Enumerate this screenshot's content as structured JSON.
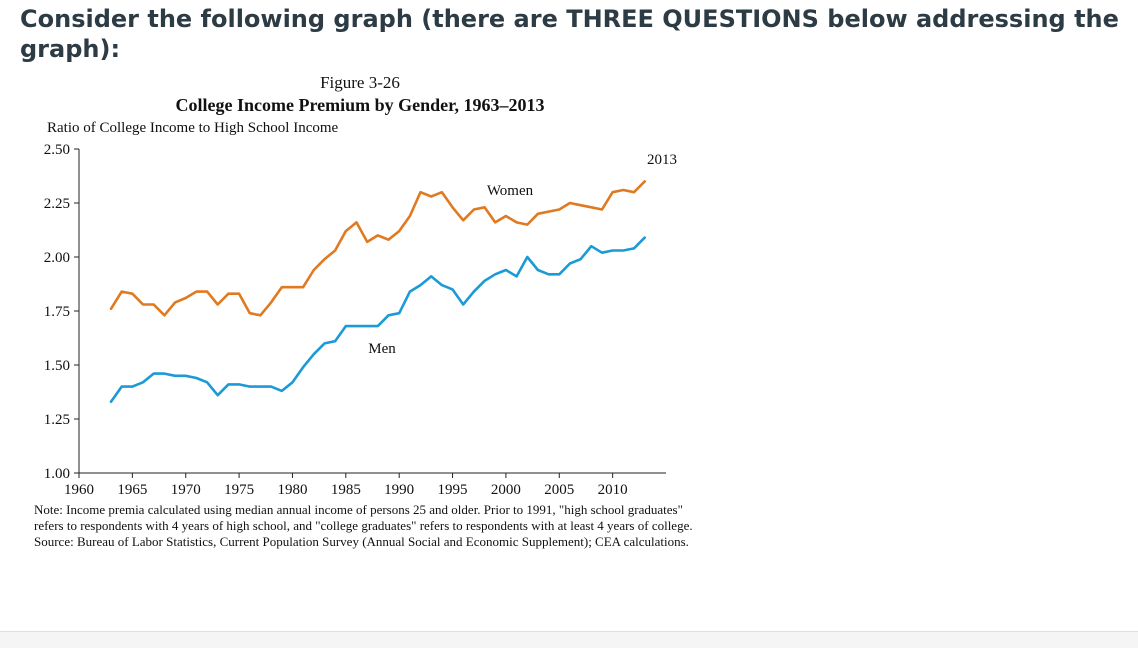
{
  "question": "Consider the following graph (there are THREE QUESTIONS below addressing the graph):",
  "figure": {
    "number": "Figure 3-26",
    "title": "College Income Premium by Gender, 1963–2013",
    "y_axis_title": "Ratio of College Income to High School Income",
    "end_label": "2013",
    "note": "Note: Income premia calculated using median annual income of persons 25 and older.  Prior to 1991, \"high school graduates\" refers to respondents with 4 years of high school, and \"college graduates\" refers to respondents with at least 4 years of college.",
    "source": "Source: Bureau of Labor Statistics, Current Population Survey (Annual Social and Economic Supplement); CEA calculations."
  },
  "colors": {
    "women": "#e07a20",
    "men": "#1b9ad6",
    "axis": "#222222"
  },
  "chart_data": {
    "type": "line",
    "title": "College Income Premium by Gender, 1963–2013",
    "ylabel": "Ratio of College Income to High School Income",
    "xlabel": "",
    "xlim": [
      1960,
      2015
    ],
    "ylim": [
      1.0,
      2.5
    ],
    "x_ticks": [
      "1960",
      "1965",
      "1970",
      "1975",
      "1980",
      "1985",
      "1990",
      "1995",
      "2000",
      "2005",
      "2010"
    ],
    "y_ticks": [
      "1.00",
      "1.25",
      "1.50",
      "1.75",
      "2.00",
      "2.25",
      "2.50"
    ],
    "x": [
      1963,
      1964,
      1965,
      1966,
      1967,
      1968,
      1969,
      1970,
      1971,
      1972,
      1973,
      1974,
      1975,
      1976,
      1977,
      1978,
      1979,
      1980,
      1981,
      1982,
      1983,
      1984,
      1985,
      1986,
      1987,
      1988,
      1989,
      1990,
      1991,
      1992,
      1993,
      1994,
      1995,
      1996,
      1997,
      1998,
      1999,
      2000,
      2001,
      2002,
      2003,
      2004,
      2005,
      2006,
      2007,
      2008,
      2009,
      2010,
      2011,
      2012,
      2013
    ],
    "series": [
      {
        "name": "Women",
        "values": [
          1.76,
          1.84,
          1.83,
          1.78,
          1.78,
          1.73,
          1.79,
          1.81,
          1.84,
          1.84,
          1.78,
          1.83,
          1.83,
          1.74,
          1.73,
          1.79,
          1.86,
          1.86,
          1.86,
          1.94,
          1.99,
          2.03,
          2.12,
          2.16,
          2.07,
          2.1,
          2.08,
          2.12,
          2.19,
          2.3,
          2.28,
          2.3,
          2.23,
          2.17,
          2.22,
          2.23,
          2.16,
          2.19,
          2.16,
          2.15,
          2.2,
          2.21,
          2.22,
          2.25,
          2.24,
          2.23,
          2.22,
          2.3,
          2.31,
          2.3,
          2.35
        ]
      },
      {
        "name": "Men",
        "values": [
          1.33,
          1.4,
          1.4,
          1.42,
          1.46,
          1.46,
          1.45,
          1.45,
          1.44,
          1.42,
          1.36,
          1.41,
          1.41,
          1.4,
          1.4,
          1.4,
          1.38,
          1.42,
          1.49,
          1.55,
          1.6,
          1.61,
          1.68,
          1.68,
          1.68,
          1.68,
          1.73,
          1.74,
          1.84,
          1.87,
          1.91,
          1.87,
          1.85,
          1.78,
          1.84,
          1.89,
          1.92,
          1.94,
          1.91,
          2.0,
          1.94,
          1.92,
          1.92,
          1.97,
          1.99,
          2.05,
          2.02,
          2.03,
          2.03,
          2.04,
          2.09
        ]
      }
    ]
  }
}
